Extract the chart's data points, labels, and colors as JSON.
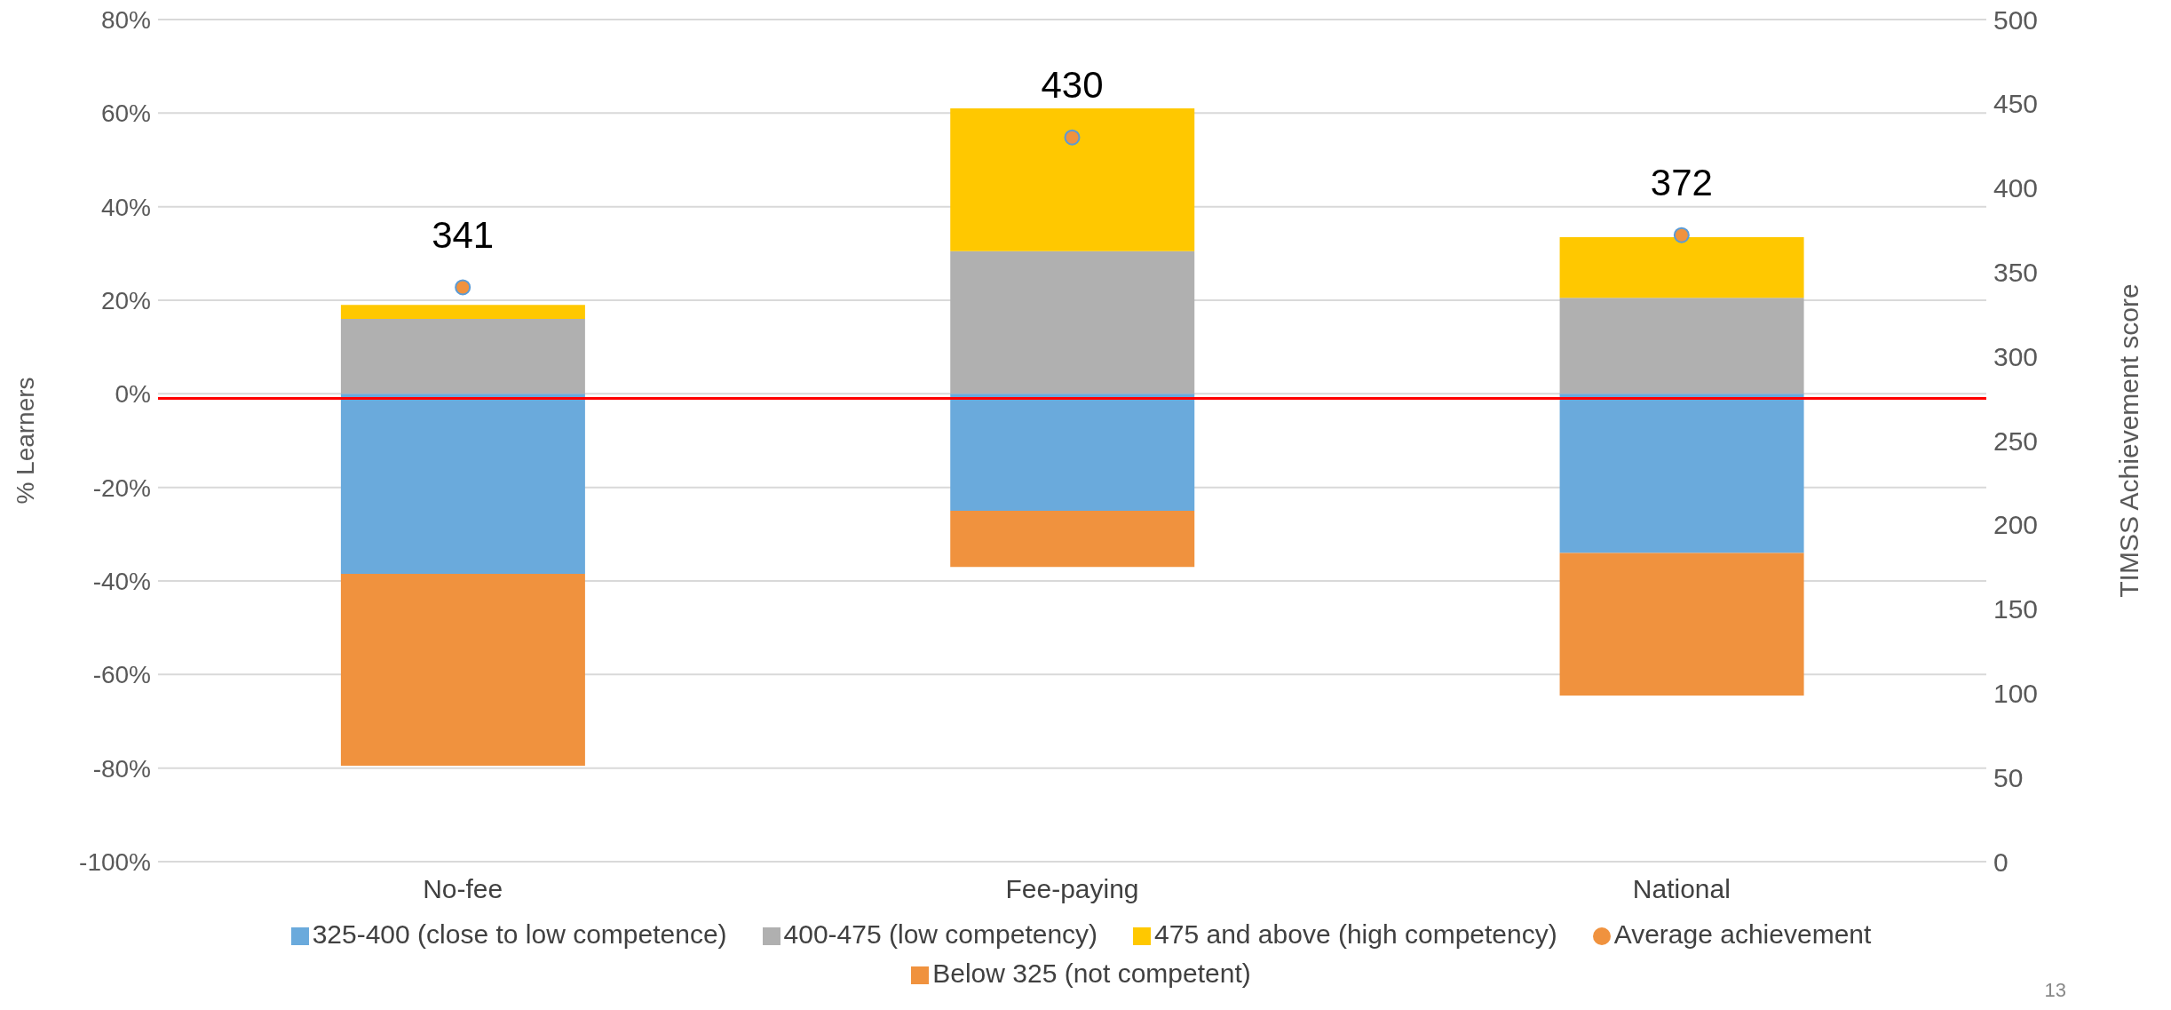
{
  "chart_data": {
    "type": "bar",
    "stacked": true,
    "ylabel": "% Learners",
    "y2label": "TIMSS Achievement score",
    "categories": [
      "No-fee",
      "Fee-paying",
      "National"
    ],
    "series": [
      {
        "name": "325-400 (close to  low  competence)",
        "color": "#6aaadc",
        "values": [
          -38.5,
          -25,
          -34
        ]
      },
      {
        "name": "Below 325 (not competent)",
        "color": "#f0923e",
        "values": [
          -41,
          -12,
          -30.5
        ]
      },
      {
        "name": "400-475 (low competency)",
        "color": "#b0b0b0",
        "values": [
          16,
          30.5,
          20.5
        ]
      },
      {
        "name": "475 and above (high competency)",
        "color": "#ffc800",
        "values": [
          3,
          30.5,
          13
        ]
      },
      {
        "name": "Average achievement",
        "type": "scatter",
        "axis": "y2",
        "color": "#f0923e",
        "marker": "circle",
        "values": [
          341,
          430,
          372
        ],
        "value_labels": [
          "341",
          "430",
          "372"
        ]
      }
    ],
    "ylim": [
      -100,
      80
    ],
    "yticks": [
      {
        "value": -100,
        "label": "-100%"
      },
      {
        "value": -80,
        "label": "-80%"
      },
      {
        "value": -60,
        "label": "-60%"
      },
      {
        "value": -40,
        "label": "-40%"
      },
      {
        "value": -20,
        "label": "-20%"
      },
      {
        "value": 0,
        "label": "0%"
      },
      {
        "value": 20,
        "label": "20%"
      },
      {
        "value": 40,
        "label": "40%"
      },
      {
        "value": 60,
        "label": "60%"
      },
      {
        "value": 80,
        "label": "80%"
      }
    ],
    "y2lim": [
      0,
      500
    ],
    "y2ticks": [
      0,
      50,
      100,
      150,
      200,
      250,
      300,
      350,
      400,
      450,
      500
    ],
    "ref_lines": [
      {
        "axis": "y2",
        "value": 275,
        "color": "#ff0000"
      }
    ],
    "grid": "y",
    "legend": "bottom",
    "annotations": [
      "13"
    ]
  }
}
